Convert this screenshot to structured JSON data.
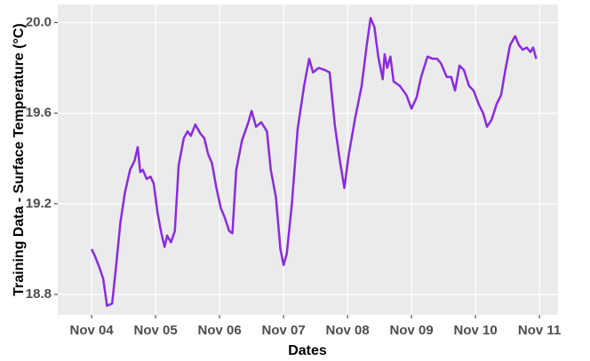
{
  "chart_data": {
    "type": "line",
    "xlabel": "Dates",
    "ylabel": "Training Data - Surface Temperature (°C)",
    "series": [
      {
        "name": "Surface Temperature",
        "color": "#8a2be2",
        "x": [
          4.0,
          4.05,
          4.12,
          4.18,
          4.24,
          4.32,
          4.38,
          4.45,
          4.52,
          4.6,
          4.67,
          4.72,
          4.76,
          4.8,
          4.86,
          4.92,
          4.97,
          5.03,
          5.09,
          5.14,
          5.18,
          5.24,
          5.3,
          5.36,
          5.44,
          5.5,
          5.55,
          5.62,
          5.7,
          5.76,
          5.82,
          5.88,
          5.95,
          6.02,
          6.08,
          6.15,
          6.2,
          6.26,
          6.35,
          6.45,
          6.5,
          6.57,
          6.65,
          6.74,
          6.8,
          6.88,
          6.95,
          7.0,
          7.05,
          7.13,
          7.22,
          7.32,
          7.4,
          7.46,
          7.55,
          7.65,
          7.72,
          7.8,
          7.88,
          7.95,
          8.02,
          8.12,
          8.22,
          8.3,
          8.36,
          8.42,
          8.48,
          8.55,
          8.58,
          8.62,
          8.67,
          8.72,
          8.82,
          8.92,
          9.0,
          9.08,
          9.15,
          9.25,
          9.33,
          9.4,
          9.46,
          9.55,
          9.62,
          9.68,
          9.75,
          9.82,
          9.9,
          9.97,
          10.05,
          10.12,
          10.18,
          10.25,
          10.33,
          10.4,
          10.46,
          10.54,
          10.62,
          10.68,
          10.74,
          10.8,
          10.86,
          10.9,
          10.95
        ],
        "values": [
          19.0,
          18.97,
          18.92,
          18.87,
          18.75,
          18.76,
          18.92,
          19.12,
          19.25,
          19.35,
          19.39,
          19.45,
          19.34,
          19.35,
          19.31,
          19.32,
          19.29,
          19.16,
          19.07,
          19.01,
          19.06,
          19.03,
          19.08,
          19.37,
          19.49,
          19.52,
          19.5,
          19.55,
          19.51,
          19.49,
          19.42,
          19.38,
          19.27,
          19.18,
          19.14,
          19.08,
          19.07,
          19.35,
          19.48,
          19.56,
          19.61,
          19.54,
          19.56,
          19.52,
          19.35,
          19.23,
          19.0,
          18.93,
          18.98,
          19.2,
          19.53,
          19.72,
          19.84,
          19.78,
          19.8,
          19.79,
          19.78,
          19.55,
          19.39,
          19.27,
          19.42,
          19.58,
          19.72,
          19.9,
          20.02,
          19.98,
          19.85,
          19.75,
          19.86,
          19.8,
          19.85,
          19.74,
          19.72,
          19.68,
          19.62,
          19.67,
          19.76,
          19.85,
          19.84,
          19.84,
          19.82,
          19.76,
          19.76,
          19.7,
          19.81,
          19.79,
          19.72,
          19.7,
          19.64,
          19.6,
          19.54,
          19.57,
          19.64,
          19.68,
          19.78,
          19.9,
          19.94,
          19.9,
          19.88,
          19.89,
          19.87,
          19.89,
          19.84
        ]
      }
    ],
    "xlim": [
      3.47,
      11.29
    ],
    "xticks": [
      {
        "value": 4,
        "label": "Nov 04"
      },
      {
        "value": 5,
        "label": "Nov 05"
      },
      {
        "value": 6,
        "label": "Nov 06"
      },
      {
        "value": 7,
        "label": "Nov 07"
      },
      {
        "value": 8,
        "label": "Nov 08"
      },
      {
        "value": 9,
        "label": "Nov 09"
      },
      {
        "value": 10,
        "label": "Nov 10"
      },
      {
        "value": 11,
        "label": "Nov 11"
      }
    ],
    "ylim": [
      18.71,
      20.08
    ],
    "yticks": [
      {
        "value": 18.8,
        "label": "18.8"
      },
      {
        "value": 19.2,
        "label": "19.2"
      },
      {
        "value": 19.6,
        "label": "19.6"
      },
      {
        "value": 20.0,
        "label": "20.0"
      }
    ],
    "grid": true
  }
}
